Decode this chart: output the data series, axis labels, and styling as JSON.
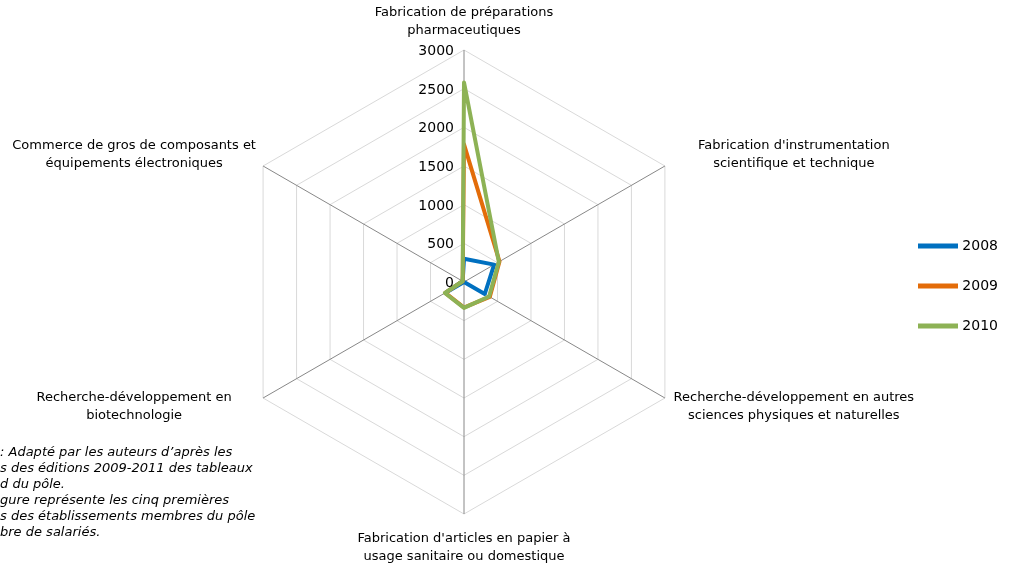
{
  "chart_data": {
    "type": "radar",
    "categories": [
      "Fabrication de préparations pharmaceutiques",
      "Fabrication d'instrumentation scientifique et technique",
      "Recherche-développement en autres sciences physiques et naturelles",
      "Fabrication d'articles en papier à usage sanitaire ou domestique",
      "Recherche-développement en biotechnologie",
      "Commerce de gros de composants et équipements électroniques"
    ],
    "series": [
      {
        "name": "2008",
        "color": "#0070c0",
        "values": [
          300,
          450,
          310,
          0,
          250,
          20
        ]
      },
      {
        "name": "2009",
        "color": "#e36c09",
        "values": [
          1780,
          530,
          385,
          330,
          280,
          20
        ]
      },
      {
        "name": "2010",
        "color": "#8db255",
        "values": [
          2580,
          520,
          375,
          335,
          285,
          20
        ]
      }
    ],
    "ylim": [
      0,
      3000
    ],
    "yticks": [
      0,
      500,
      1000,
      1500,
      2000,
      2500,
      3000
    ],
    "grid": true,
    "legend": "right",
    "marker": "none",
    "line_style": "solid",
    "annotations": [
      ": Adapté par les auteurs d’après les",
      "s des éditions 2009-2011 des tableaux",
      "d du pôle.",
      "gure représente les cinq premières",
      "s des établissements membres du pôle",
      "bre de salariés."
    ]
  }
}
